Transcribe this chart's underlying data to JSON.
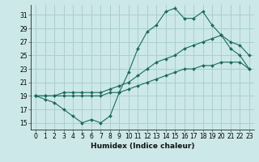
{
  "xlabel": "Humidex (Indice chaleur)",
  "bg_color": "#cce8e8",
  "grid_color": "#aacfcf",
  "line_color": "#1a6b5a",
  "xlim": [
    -0.5,
    23.5
  ],
  "ylim": [
    14,
    32.5
  ],
  "xticks": [
    0,
    1,
    2,
    3,
    4,
    5,
    6,
    7,
    8,
    9,
    10,
    11,
    12,
    13,
    14,
    15,
    16,
    17,
    18,
    19,
    20,
    21,
    22,
    23
  ],
  "yticks": [
    15,
    17,
    19,
    21,
    23,
    25,
    27,
    29,
    31
  ],
  "s1": [
    19,
    18.5,
    18,
    17,
    16,
    15,
    15.5,
    15,
    16,
    19.5,
    22.5,
    26,
    28.5,
    29.5,
    31.5,
    32,
    30.5,
    30.5,
    31.5,
    29.5,
    28,
    26,
    25,
    23
  ],
  "s2": [
    19,
    19,
    19,
    19.5,
    19.5,
    19.5,
    19.5,
    19.5,
    20,
    20.5,
    21,
    22,
    23,
    24,
    24.5,
    25,
    26,
    26.5,
    27,
    27.5,
    28,
    27,
    26.5,
    25
  ],
  "s3": [
    19,
    19,
    19,
    19,
    19,
    19,
    19,
    19,
    19.5,
    19.5,
    20,
    20.5,
    21,
    21.5,
    22,
    22.5,
    23,
    23,
    23.5,
    23.5,
    24,
    24,
    24,
    23
  ]
}
